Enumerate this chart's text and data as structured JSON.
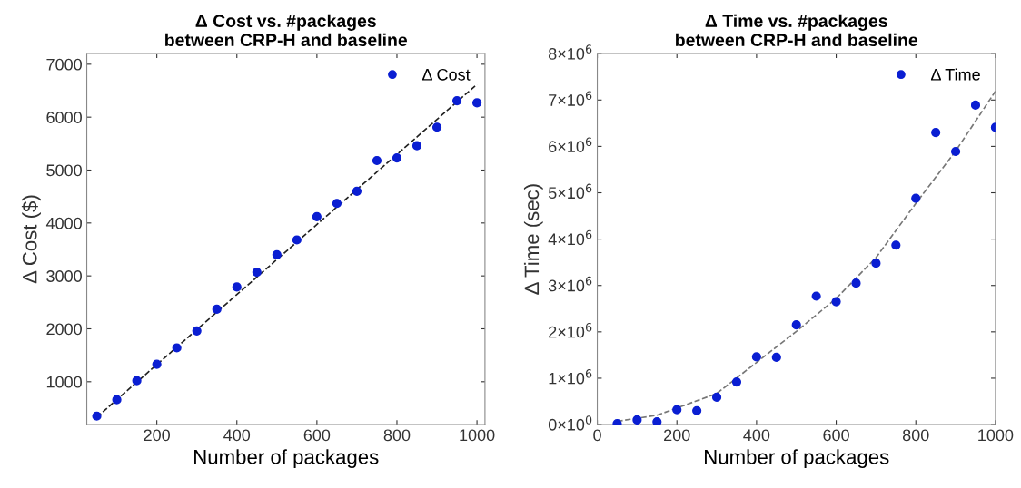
{
  "chart_data": [
    {
      "type": "scatter",
      "title": "Δ Cost vs. #packages\nbetween CRP-H and baseline",
      "xlabel": "Number of packages",
      "ylabel": "Δ Cost ($)",
      "x": [
        50,
        100,
        150,
        200,
        250,
        300,
        350,
        400,
        450,
        500,
        550,
        600,
        650,
        700,
        750,
        800,
        850,
        900,
        950,
        1000
      ],
      "series": [
        {
          "name": "Δ Cost",
          "color": "#0a1ed2",
          "marker": "circle",
          "values": [
            350,
            660,
            1020,
            1330,
            1640,
            1960,
            2370,
            2790,
            3070,
            3400,
            3680,
            4120,
            4370,
            4600,
            5180,
            5230,
            5460,
            5810,
            6310,
            6270
          ]
        },
        {
          "type": "line",
          "color": "#222222",
          "line_style": "dashed",
          "marker": "none",
          "x": [
            50,
            1000
          ],
          "values": [
            330,
            6620
          ]
        }
      ],
      "xlim": [
        25,
        1020
      ],
      "ylim": [
        190,
        7200
      ],
      "xticks": [
        200,
        400,
        600,
        800,
        1000
      ],
      "yticks": [
        1000,
        2000,
        3000,
        4000,
        5000,
        6000,
        7000
      ],
      "legend": "top right",
      "grid": false
    },
    {
      "type": "scatter",
      "title": "Δ Time vs. #packages\nbetween CRP-H and baseline",
      "xlabel": "Number of packages",
      "ylabel": "Δ Time (sec)",
      "x": [
        50,
        100,
        150,
        200,
        250,
        300,
        350,
        400,
        450,
        500,
        550,
        600,
        650,
        700,
        750,
        800,
        850,
        900,
        950,
        1000
      ],
      "series": [
        {
          "name": "Δ Time",
          "color": "#0a1ed2",
          "marker": "circle",
          "values": [
            20000,
            100000,
            60000,
            320000,
            300000,
            590000,
            920000,
            1460000,
            1450000,
            2150000,
            2770000,
            2650000,
            3050000,
            3480000,
            3870000,
            4880000,
            6300000,
            5890000,
            6890000,
            6410000
          ]
        },
        {
          "type": "line",
          "color": "#777777",
          "line_style": "dashed",
          "marker": "none",
          "x": [
            50,
            150,
            300,
            400,
            500,
            600,
            700,
            800,
            900,
            1000
          ],
          "values": [
            70000,
            200000,
            670000,
            1340000,
            2010000,
            2720000,
            3600000,
            4770000,
            5900000,
            7190000
          ]
        }
      ],
      "xlim": [
        0,
        1000
      ],
      "ylim": [
        0,
        8000000
      ],
      "xticks": [
        0,
        200,
        400,
        600,
        800,
        1000
      ],
      "yticks": [
        {
          "value": 0,
          "label": "0×10$^{0}$"
        },
        {
          "value": 1000000,
          "label": "1×10$^{6}$"
        },
        {
          "value": 2000000,
          "label": "2×10$^{6}$"
        },
        {
          "value": 3000000,
          "label": "3×10$^{6}$"
        },
        {
          "value": 4000000,
          "label": "4×10$^{6}$"
        },
        {
          "value": 5000000,
          "label": "5×10$^{6}$"
        },
        {
          "value": 6000000,
          "label": "6×10$^{6}$"
        },
        {
          "value": 7000000,
          "label": "7×10$^{6}$"
        },
        {
          "value": 8000000,
          "label": "8×10$^{6}$"
        }
      ],
      "legend": "top right",
      "grid": false
    }
  ]
}
